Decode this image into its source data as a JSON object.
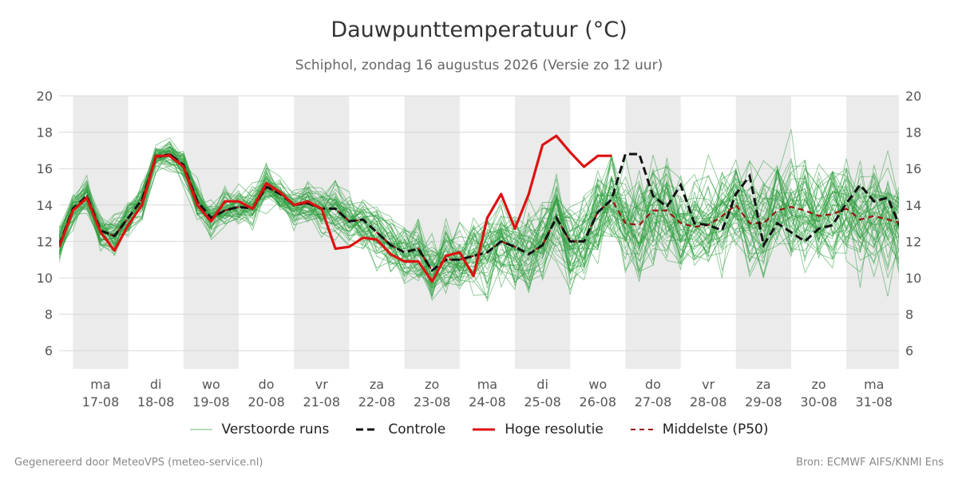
{
  "title": "Dauwpunttemperatuur (°C)",
  "subtitle": "Schiphol, zondag 16 augustus 2026 (Versie zo 12 uur)",
  "footer": {
    "left": "Gegenereerd door MeteoVPS (meteo-service.nl)",
    "right": "Bron: ECMWF AIFS/KNMI Ens"
  },
  "colors": {
    "members": "#2e9e3e",
    "control": "#111111",
    "hires": "#dd1111",
    "median": "#9b1111",
    "weekend_band": "#ebebeb",
    "grid": "#d8d8d8"
  },
  "chart_data": {
    "type": "line",
    "title": "Dauwpunttemperatuur (°C)",
    "subtitle": "Schiphol, zondag 16 augustus 2026 (Versie zo 12 uur)",
    "xlabel": "",
    "ylabel": "",
    "x_range_days": [
      16.75,
      31.9
    ],
    "ylim": [
      5,
      20
    ],
    "yticks": [
      6,
      8,
      10,
      12,
      14,
      16,
      18,
      20
    ],
    "grid": true,
    "legend_placement": "bottom",
    "day_ticks": [
      {
        "day": "ma",
        "date": "17-08"
      },
      {
        "day": "di",
        "date": "18-08"
      },
      {
        "day": "wo",
        "date": "19-08"
      },
      {
        "day": "do",
        "date": "20-08"
      },
      {
        "day": "vr",
        "date": "21-08"
      },
      {
        "day": "za",
        "date": "22-08"
      },
      {
        "day": "zo",
        "date": "23-08"
      },
      {
        "day": "ma",
        "date": "24-08"
      },
      {
        "day": "di",
        "date": "25-08"
      },
      {
        "day": "wo",
        "date": "26-08"
      },
      {
        "day": "do",
        "date": "27-08"
      },
      {
        "day": "vr",
        "date": "28-08"
      },
      {
        "day": "za",
        "date": "29-08"
      },
      {
        "day": "zo",
        "date": "30-08"
      },
      {
        "day": "ma",
        "date": "31-08"
      }
    ],
    "shaded_days": [
      "17-08",
      "19-08",
      "21-08",
      "23-08",
      "25-08",
      "27-08",
      "29-08",
      "31-08"
    ],
    "x_step_days": 0.25,
    "series": [
      {
        "name": "Controle",
        "style": "dashed",
        "values": [
          11.8,
          13.8,
          14.5,
          12.6,
          12.3,
          13.3,
          14.3,
          16.6,
          16.8,
          16.2,
          14.2,
          13.3,
          13.7,
          13.9,
          13.8,
          15.0,
          14.6,
          14.0,
          14.1,
          13.8,
          13.8,
          13.1,
          13.2,
          12.5,
          11.8,
          11.4,
          11.6,
          10.4,
          11.0,
          11.0,
          11.2,
          11.4,
          12.0,
          11.7,
          11.3,
          11.8,
          13.3,
          12.0,
          12.0,
          13.6,
          14.3,
          16.8,
          16.8,
          14.5,
          13.9,
          15.1,
          13.0,
          12.9,
          12.6,
          14.6,
          15.6,
          11.8,
          13.0,
          12.5,
          12.0,
          12.7,
          12.9,
          14.1,
          15.1,
          14.2,
          14.4,
          12.6
        ]
      },
      {
        "name": "Hoge resolutie",
        "style": "solid",
        "values": [
          11.7,
          13.7,
          14.4,
          12.5,
          11.5,
          12.9,
          14.0,
          16.7,
          16.7,
          16.1,
          14.0,
          13.1,
          14.2,
          14.2,
          13.8,
          15.2,
          14.7,
          14.0,
          14.2,
          13.8,
          11.6,
          11.7,
          12.2,
          12.1,
          11.3,
          10.9,
          10.9,
          9.8,
          11.2,
          11.4,
          10.1,
          13.3,
          14.6,
          12.7,
          14.6,
          17.3,
          17.8,
          16.9,
          16.1,
          16.7,
          16.7
        ]
      },
      {
        "name": "Middelste (P50)",
        "style": "dashed",
        "values": [
          11.8,
          13.8,
          14.5,
          12.6,
          12.3,
          13.3,
          14.3,
          16.6,
          16.8,
          16.2,
          14.2,
          13.3,
          13.7,
          13.9,
          13.8,
          15.0,
          14.6,
          14.0,
          14.1,
          13.8,
          13.8,
          13.1,
          13.2,
          12.5,
          11.8,
          11.4,
          11.6,
          10.4,
          11.0,
          11.0,
          11.2,
          11.4,
          12.0,
          11.7,
          11.3,
          11.8,
          13.3,
          12.0,
          12.0,
          13.6,
          14.3,
          13.0,
          12.9,
          13.7,
          13.7,
          13.0,
          12.8,
          12.9,
          13.4,
          14.0,
          13.0,
          13.0,
          13.7,
          13.9,
          13.7,
          13.4,
          13.5,
          13.8,
          13.2,
          13.4,
          13.2,
          13.0
        ]
      }
    ],
    "ensemble_members": {
      "name": "Verstoorde runs",
      "count": 50,
      "center": [
        11.8,
        13.8,
        14.5,
        12.6,
        12.3,
        13.3,
        14.3,
        16.6,
        16.8,
        16.2,
        14.2,
        13.3,
        13.7,
        13.9,
        13.8,
        15.0,
        14.6,
        14.0,
        14.1,
        13.8,
        13.8,
        13.1,
        13.2,
        12.5,
        11.8,
        11.4,
        11.6,
        10.4,
        11.0,
        11.0,
        11.2,
        11.4,
        12.0,
        11.7,
        11.3,
        11.8,
        13.3,
        12.0,
        12.0,
        13.6,
        14.3,
        13.0,
        12.9,
        13.7,
        13.7,
        13.0,
        12.8,
        12.9,
        13.4,
        14.0,
        13.0,
        13.0,
        13.7,
        13.9,
        13.7,
        13.4,
        13.5,
        13.8,
        13.2,
        13.4,
        13.2,
        13.0
      ],
      "spread": [
        0.9,
        0.9,
        0.9,
        1.0,
        1.0,
        1.0,
        1.0,
        0.8,
        0.8,
        0.9,
        1.1,
        1.1,
        1.1,
        1.1,
        1.1,
        1.1,
        1.1,
        1.2,
        1.2,
        1.3,
        1.4,
        1.4,
        1.5,
        1.6,
        1.7,
        1.8,
        1.8,
        1.9,
        2.0,
        2.0,
        2.1,
        2.1,
        2.2,
        2.2,
        2.3,
        2.3,
        2.4,
        2.4,
        2.5,
        2.5,
        2.5,
        2.6,
        2.6,
        2.6,
        2.6,
        2.7,
        2.7,
        2.7,
        2.7,
        2.8,
        2.8,
        2.8,
        2.8,
        2.8,
        2.9,
        2.9,
        2.9,
        2.9,
        2.9,
        2.9,
        2.9,
        2.9
      ]
    },
    "legend": [
      "Verstoorde runs",
      "Controle",
      "Hoge resolutie",
      "Middelste (P50)"
    ]
  }
}
